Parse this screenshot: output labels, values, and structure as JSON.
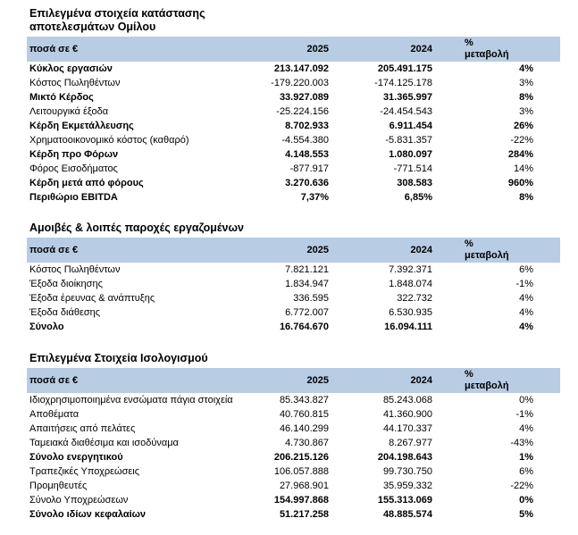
{
  "colors": {
    "header_band": "#b8cce4",
    "text": "#000000",
    "background": "#ffffff"
  },
  "tables": [
    {
      "title": "Επιλεγμένα στοιχεία κατάστασης\nαποτελεσμάτων Ομίλου",
      "header": {
        "amounts_label": "ποσά σε €",
        "year_current": "2025",
        "year_prior": "2024",
        "change_label": "%\nμεταβολή"
      },
      "rows": [
        {
          "label": "Κύκλος εργασιών",
          "current": "213.147.092",
          "prior": "205.491.175",
          "change": "4%",
          "bold": "all"
        },
        {
          "label": "Κόστος Πωληθέντων",
          "current": "-179.220.003",
          "prior": "-174.125.178",
          "change": "3%",
          "bold": "none"
        },
        {
          "label": "Μικτό Κέρδος",
          "current": "33.927.089",
          "prior": "31.365.997",
          "change": "8%",
          "bold": "all"
        },
        {
          "label": "Λειτουργικά έξοδα",
          "current": "-25.224.156",
          "prior": "-24.454.543",
          "change": "3%",
          "bold": "none"
        },
        {
          "label": "Κέρδη Εκμετάλλευσης",
          "current": "8.702.933",
          "prior": "6.911.454",
          "change": "26%",
          "bold": "all"
        },
        {
          "label": "Χρηματοοικονομικό κόστος (καθαρό)",
          "current": "-4.554.380",
          "prior": "-5.831.357",
          "change": "-22%",
          "bold": "none"
        },
        {
          "label": "Κέρδη προ Φόρων",
          "current": "4.148.553",
          "prior": "1.080.097",
          "change": "284%",
          "bold": "all"
        },
        {
          "label": "Φόρος Εισοδήματος",
          "current": "-877.917",
          "prior": "-771.514",
          "change": "14%",
          "bold": "none"
        },
        {
          "label": "Κέρδη μετά από φόρους",
          "current": "3.270.636",
          "prior": "308.583",
          "change": "960%",
          "bold": "all"
        },
        {
          "label": "Περιθώριο EBITDA",
          "current": "7,37%",
          "prior": "6,85%",
          "change": "8%",
          "bold": "all"
        }
      ]
    },
    {
      "title": "Αμοιβές & λοιπές παροχές εργαζομένων",
      "header": {
        "amounts_label": "ποσά σε €",
        "year_current": "2025",
        "year_prior": "2024",
        "change_label": "%\nμεταβολή"
      },
      "rows": [
        {
          "label": "Κόστος Πωληθέντων",
          "current": "7.821.121",
          "prior": "7.392.371",
          "change": "6%",
          "bold": "none"
        },
        {
          "label": "Έξοδα διοίκησης",
          "current": "1.834.947",
          "prior": "1.848.074",
          "change": "-1%",
          "bold": "none"
        },
        {
          "label": "Έξοδα έρευνας & ανάπτυξης",
          "current": "336.595",
          "prior": "322.732",
          "change": "4%",
          "bold": "none"
        },
        {
          "label": "Έξοδα διάθεσης",
          "current": "6.772.007",
          "prior": "6.530.935",
          "change": "4%",
          "bold": "none"
        },
        {
          "label": "Σύνολο",
          "current": "16.764.670",
          "prior": "16.094.111",
          "change": "4%",
          "bold": "all"
        }
      ]
    },
    {
      "title": "Επιλεγμένα Στοιχεία Ισολογισμού",
      "header": {
        "amounts_label": "ποσά σε €",
        "year_current": "2025",
        "year_prior": "2024",
        "change_label": "%\nμεταβολή"
      },
      "rows": [
        {
          "label": "Ιδιοχρησιμοποιημένα ενσώματα πάγια στοιχεία",
          "current": "85.343.827",
          "prior": "85.243.068",
          "change": "0%",
          "bold": "none"
        },
        {
          "label": "Αποθέματα",
          "current": "40.760.815",
          "prior": "41.360.900",
          "change": "-1%",
          "bold": "none"
        },
        {
          "label": "Απαιτήσεις από πελάτες",
          "current": "46.140.299",
          "prior": "44.170.337",
          "change": "4%",
          "bold": "none"
        },
        {
          "label": "Ταμειακά διαθέσιμα και ισοδύναμα",
          "current": "4.730.867",
          "prior": "8.267.977",
          "change": "-43%",
          "bold": "none"
        },
        {
          "label": "Σύνολο ενεργητικού",
          "current": "206.215.126",
          "prior": "204.198.643",
          "change": "1%",
          "bold": "all"
        },
        {
          "label": "Τραπεζικές Υποχρεώσεις",
          "current": "106.057.888",
          "prior": "99.730.750",
          "change": "6%",
          "bold": "none"
        },
        {
          "label": "Προμηθευτές",
          "current": "27.968.901",
          "prior": "35.959.332",
          "change": "-22%",
          "bold": "none"
        },
        {
          "label": "Σύνολο Υποχρεώσεων",
          "current": "154.997.868",
          "prior": "155.313.069",
          "change": "0%",
          "bold": "values"
        },
        {
          "label": "Σύνολο ιδίων κεφαλαίων",
          "current": "51.217.258",
          "prior": "48.885.574",
          "change": "5%",
          "bold": "all"
        }
      ]
    }
  ]
}
